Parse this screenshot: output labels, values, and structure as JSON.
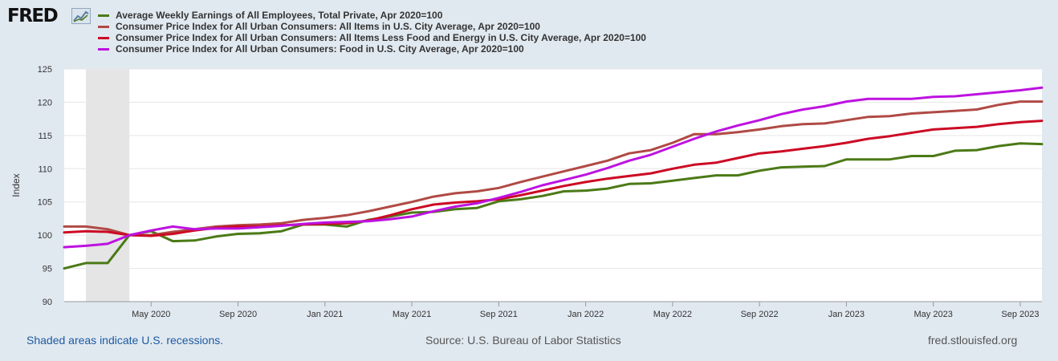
{
  "logo": {
    "text": "FRED"
  },
  "footer": {
    "recession_note": "Shaded areas indicate U.S. recessions.",
    "source": "Source: U.S. Bureau of Labor Statistics",
    "site": "fred.stlouisfed.org"
  },
  "colors": {
    "background": "#e1e9f0",
    "plot_background": "#ffffff",
    "grid": "#e6e6e6",
    "recession": "#e5e5e5"
  },
  "chart_data": {
    "type": "line",
    "title": "",
    "xlabel": "",
    "ylabel": "Index",
    "ylim": [
      90,
      125
    ],
    "yticks": [
      90,
      95,
      100,
      105,
      110,
      115,
      120,
      125
    ],
    "grid": true,
    "legend_position": "top-left",
    "x_range": [
      "2020-01",
      "2023-10"
    ],
    "x_ticks": [
      {
        "label": "May 2020",
        "date": "2020-05"
      },
      {
        "label": "Sep 2020",
        "date": "2020-09"
      },
      {
        "label": "Jan 2021",
        "date": "2021-01"
      },
      {
        "label": "May 2021",
        "date": "2021-05"
      },
      {
        "label": "Sep 2021",
        "date": "2021-09"
      },
      {
        "label": "Jan 2022",
        "date": "2022-01"
      },
      {
        "label": "May 2022",
        "date": "2022-05"
      },
      {
        "label": "Sep 2022",
        "date": "2022-09"
      },
      {
        "label": "Jan 2023",
        "date": "2023-01"
      },
      {
        "label": "May 2023",
        "date": "2023-05"
      },
      {
        "label": "Sep 2023",
        "date": "2023-09"
      }
    ],
    "recessions": [
      {
        "start": "2020-02",
        "end": "2020-04"
      }
    ],
    "x": [
      "2020-01",
      "2020-02",
      "2020-03",
      "2020-04",
      "2020-05",
      "2020-06",
      "2020-07",
      "2020-08",
      "2020-09",
      "2020-10",
      "2020-11",
      "2020-12",
      "2021-01",
      "2021-02",
      "2021-03",
      "2021-04",
      "2021-05",
      "2021-06",
      "2021-07",
      "2021-08",
      "2021-09",
      "2021-10",
      "2021-11",
      "2021-12",
      "2022-01",
      "2022-02",
      "2022-03",
      "2022-04",
      "2022-05",
      "2022-06",
      "2022-07",
      "2022-08",
      "2022-09",
      "2022-10",
      "2022-11",
      "2022-12",
      "2023-01",
      "2023-02",
      "2023-03",
      "2023-04",
      "2023-05",
      "2023-06",
      "2023-07",
      "2023-08",
      "2023-09",
      "2023-10"
    ],
    "series": [
      {
        "name": "Average Weekly Earnings of All Employees, Total Private, Apr 2020=100",
        "color": "#4b7a16",
        "values": [
          95.0,
          95.8,
          95.8,
          100.0,
          100.6,
          99.1,
          99.2,
          99.8,
          100.2,
          100.3,
          100.6,
          101.6,
          101.6,
          101.3,
          102.3,
          102.8,
          103.4,
          103.5,
          103.9,
          104.1,
          105.1,
          105.4,
          105.9,
          106.6,
          106.7,
          107.0,
          107.7,
          107.8,
          108.2,
          108.6,
          109.0,
          109.0,
          109.7,
          110.2,
          110.3,
          110.4,
          111.4,
          111.4,
          111.4,
          111.9,
          111.9,
          112.7,
          112.8,
          113.4,
          113.8,
          113.7
        ]
      },
      {
        "name": "Consumer Price Index for All Urban Consumers: All Items in U.S. City Average, Apr 2020=100",
        "color": "#b04a45",
        "values": [
          101.3,
          101.3,
          100.9,
          100.0,
          100.0,
          100.5,
          100.9,
          101.3,
          101.5,
          101.6,
          101.8,
          102.3,
          102.6,
          103.0,
          103.6,
          104.3,
          105.0,
          105.8,
          106.3,
          106.6,
          107.1,
          108.0,
          108.8,
          109.6,
          110.4,
          111.2,
          112.3,
          112.8,
          113.9,
          115.2,
          115.2,
          115.5,
          115.9,
          116.4,
          116.7,
          116.8,
          117.3,
          117.8,
          117.9,
          118.3,
          118.5,
          118.7,
          118.9,
          119.6,
          120.1,
          120.1
        ]
      },
      {
        "name": "Consumer Price Index for All Urban Consumers: All Items Less Food and Energy in U.S. City Average, Apr 2020=100",
        "color": "#cc0a24",
        "values": [
          100.4,
          100.6,
          100.5,
          100.0,
          99.9,
          100.2,
          100.7,
          101.1,
          101.3,
          101.3,
          101.5,
          101.6,
          101.7,
          101.8,
          102.2,
          103.0,
          103.9,
          104.6,
          104.9,
          105.1,
          105.4,
          106.0,
          106.7,
          107.4,
          108.0,
          108.5,
          108.9,
          109.3,
          110.0,
          110.6,
          110.9,
          111.6,
          112.3,
          112.6,
          113.0,
          113.4,
          113.9,
          114.5,
          114.9,
          115.4,
          115.9,
          116.1,
          116.3,
          116.7,
          117.0,
          117.2
        ]
      },
      {
        "name": "Consumer Price Index for All Urban Consumers: Food in U.S. City Average, Apr 2020=100",
        "color": "#bd12e0",
        "values": [
          98.2,
          98.4,
          98.7,
          100.0,
          100.7,
          101.3,
          100.9,
          101.0,
          101.0,
          101.2,
          101.4,
          101.7,
          101.9,
          102.0,
          102.1,
          102.4,
          102.8,
          103.6,
          104.3,
          104.8,
          105.6,
          106.5,
          107.5,
          108.3,
          109.1,
          110.1,
          111.2,
          112.1,
          113.3,
          114.5,
          115.6,
          116.5,
          117.3,
          118.2,
          118.9,
          119.4,
          120.1,
          120.5,
          120.5,
          120.5,
          120.8,
          120.9,
          121.2,
          121.5,
          121.8,
          122.2
        ]
      }
    ]
  }
}
